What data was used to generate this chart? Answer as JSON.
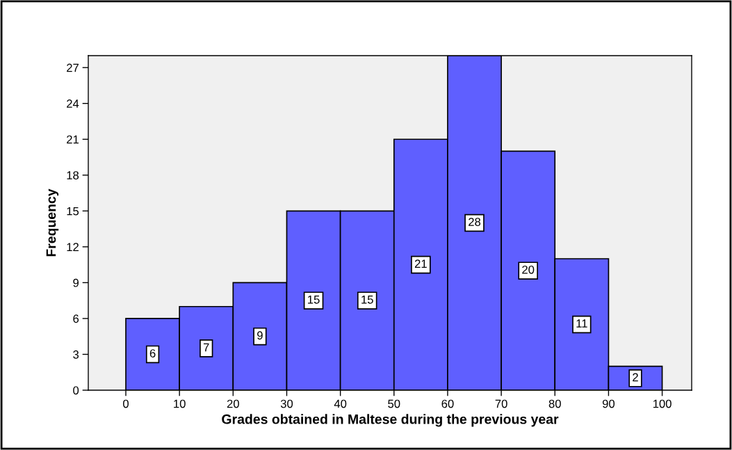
{
  "chart_data": {
    "type": "histogram",
    "xlabel": "Grades obtained in Maltese during the previous year",
    "ylabel": "Frequency",
    "bins": [
      0,
      10,
      20,
      30,
      40,
      50,
      60,
      70,
      80,
      90,
      100
    ],
    "values": [
      6,
      7,
      9,
      15,
      15,
      21,
      28,
      20,
      11,
      2
    ],
    "color": "#5f5fff",
    "data_labels": true,
    "grid": false,
    "xlim": [
      -7,
      105.5
    ],
    "ylim": [
      0,
      28
    ],
    "xticks": [
      0,
      10,
      20,
      30,
      40,
      50,
      60,
      70,
      80,
      90,
      100
    ],
    "yticks": [
      0,
      3,
      6,
      9,
      12,
      15,
      18,
      21,
      24,
      27
    ]
  }
}
